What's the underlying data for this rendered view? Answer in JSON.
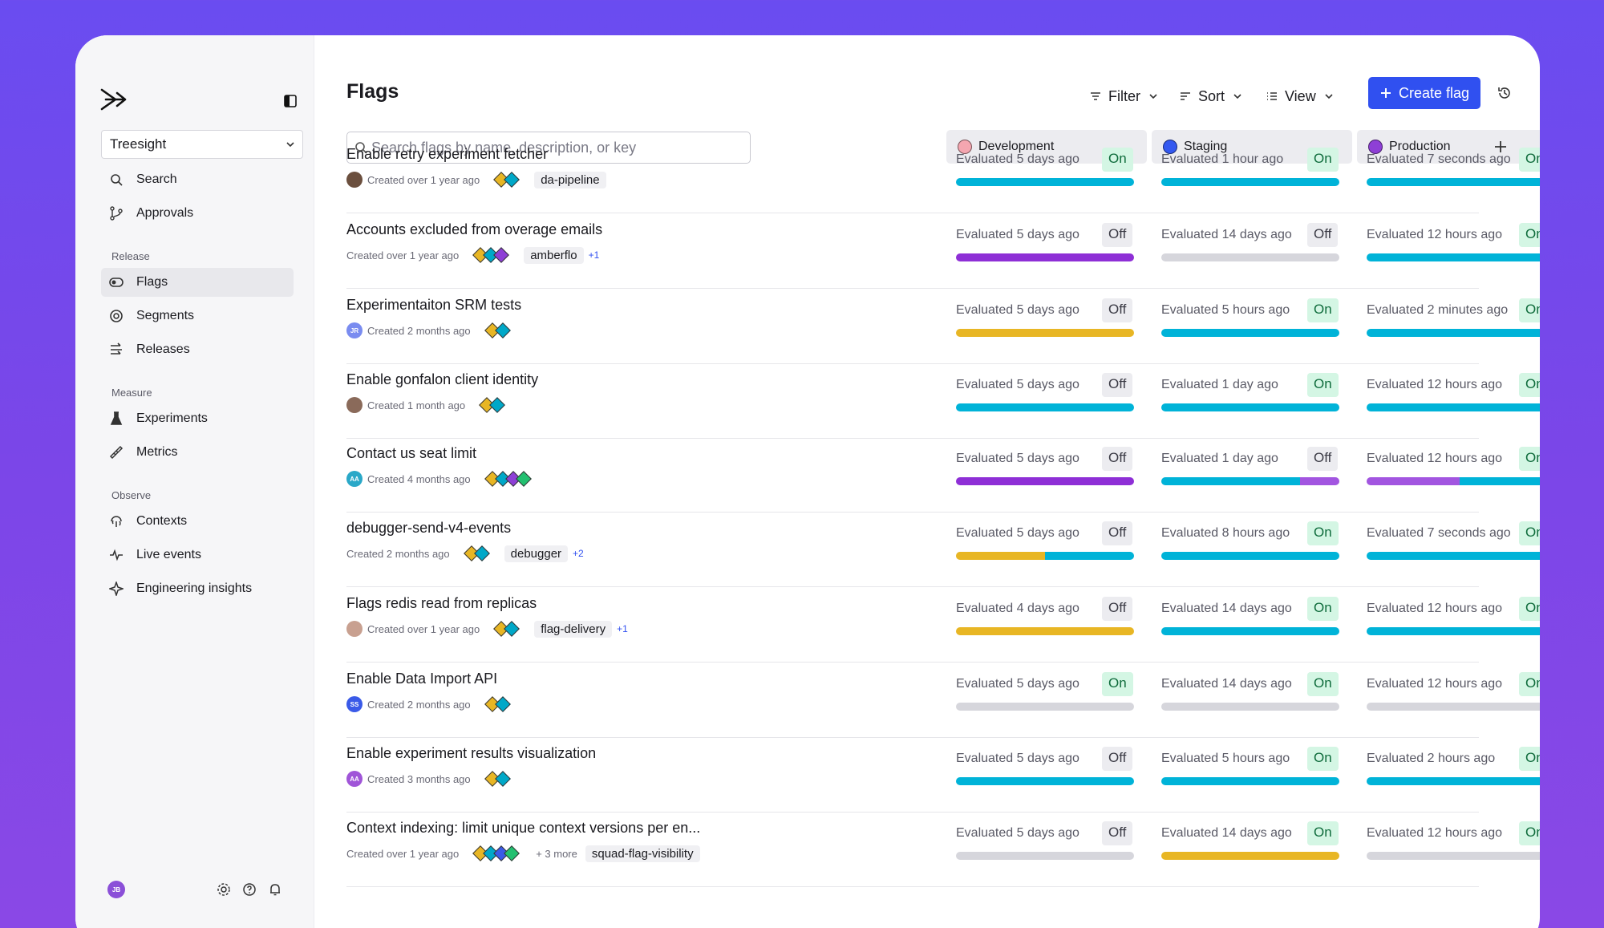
{
  "colors": {
    "blue": "#00b3d8",
    "purple": "#8e2fd6",
    "yellow": "#e8b624",
    "gray": "#d6d6dc",
    "lavender": "#a255e0"
  },
  "sidebar": {
    "project": "Treesight",
    "top_items": [
      {
        "label": "Search",
        "icon": "search-icon"
      },
      {
        "label": "Approvals",
        "icon": "branch-icon"
      }
    ],
    "sections": [
      {
        "label": "Release",
        "items": [
          {
            "label": "Flags",
            "icon": "toggle-icon",
            "active": true
          },
          {
            "label": "Segments",
            "icon": "segments-icon"
          },
          {
            "label": "Releases",
            "icon": "releases-icon"
          }
        ]
      },
      {
        "label": "Measure",
        "items": [
          {
            "label": "Experiments",
            "icon": "flask-icon"
          },
          {
            "label": "Metrics",
            "icon": "ruler-icon"
          }
        ]
      },
      {
        "label": "Observe",
        "items": [
          {
            "label": "Contexts",
            "icon": "fingerprint-icon"
          },
          {
            "label": "Live events",
            "icon": "pulse-icon"
          },
          {
            "label": "Engineering insights",
            "icon": "sparkle-icon"
          }
        ]
      }
    ],
    "user_initials": "JB"
  },
  "header": {
    "title": "Flags",
    "filter": "Filter",
    "sort": "Sort",
    "view": "View",
    "create": "Create flag"
  },
  "search": {
    "placeholder": "Search flags by name, description, or key"
  },
  "environments": [
    {
      "name": "Development",
      "color": "#f4a6b0"
    },
    {
      "name": "Staging",
      "color": "#3358f0"
    },
    {
      "name": "Production",
      "color": "#8e3fd6"
    }
  ],
  "flags": [
    {
      "name": "Enable retry experiment fetcher",
      "avatar": {
        "initials": "",
        "color": "#6b4f3e"
      },
      "created": "Created over 1 year ago",
      "diamonds": [
        "#e8b624",
        "#00a8c8"
      ],
      "tag": "da-pipeline",
      "extra": "",
      "more": "",
      "envs": [
        {
          "eval": "Evaluated 5 days ago",
          "state": "On",
          "bar": [
            [
              "blue",
              1
            ]
          ]
        },
        {
          "eval": "Evaluated 1 hour ago",
          "state": "On",
          "bar": [
            [
              "blue",
              1
            ]
          ]
        },
        {
          "eval": "Evaluated 7 seconds ago",
          "state": "On",
          "bar": [
            [
              "blue",
              1
            ]
          ]
        }
      ]
    },
    {
      "name": "Accounts excluded from overage emails",
      "avatar": null,
      "created": "Created over 1 year ago",
      "diamonds": [
        "#e8b624",
        "#00a8c8",
        "#8e3fd6"
      ],
      "tag": "amberflo",
      "extra": "+1",
      "more": "",
      "envs": [
        {
          "eval": "Evaluated 5 days ago",
          "state": "Off",
          "bar": [
            [
              "purple",
              1
            ]
          ]
        },
        {
          "eval": "Evaluated 14 days ago",
          "state": "Off",
          "bar": [
            [
              "gray",
              1
            ]
          ]
        },
        {
          "eval": "Evaluated 12 hours ago",
          "state": "On",
          "bar": [
            [
              "blue",
              1
            ]
          ]
        }
      ]
    },
    {
      "name": "Experimentaiton SRM tests",
      "avatar": {
        "initials": "JR",
        "color": "#7a8cf0"
      },
      "created": "Created 2 months ago",
      "diamonds": [
        "#e8b624",
        "#00a8c8"
      ],
      "tag": "",
      "extra": "",
      "more": "",
      "envs": [
        {
          "eval": "Evaluated 5 days ago",
          "state": "Off",
          "bar": [
            [
              "yellow",
              1
            ]
          ]
        },
        {
          "eval": "Evaluated 5 hours ago",
          "state": "On",
          "bar": [
            [
              "blue",
              1
            ]
          ]
        },
        {
          "eval": "Evaluated 2 minutes ago",
          "state": "On",
          "bar": [
            [
              "blue",
              1
            ]
          ]
        }
      ]
    },
    {
      "name": "Enable gonfalon client identity",
      "avatar": {
        "initials": "",
        "color": "#8a6a5a"
      },
      "created": "Created 1 month ago",
      "diamonds": [
        "#e8b624",
        "#00a8c8"
      ],
      "tag": "",
      "extra": "",
      "more": "",
      "envs": [
        {
          "eval": "Evaluated 5 days ago",
          "state": "Off",
          "bar": [
            [
              "blue",
              1
            ]
          ]
        },
        {
          "eval": "Evaluated 1 day ago",
          "state": "On",
          "bar": [
            [
              "blue",
              1
            ]
          ]
        },
        {
          "eval": "Evaluated 12 hours ago",
          "state": "On",
          "bar": [
            [
              "blue",
              1
            ]
          ]
        }
      ]
    },
    {
      "name": "Contact us seat limit",
      "avatar": {
        "initials": "AA",
        "color": "#2aa8c8"
      },
      "created": "Created 4 months ago",
      "diamonds": [
        "#e8b624",
        "#00a8c8",
        "#8e3fd6",
        "#22c070"
      ],
      "tag": "",
      "extra": "",
      "more": "",
      "envs": [
        {
          "eval": "Evaluated 5 days ago",
          "state": "Off",
          "bar": [
            [
              "purple",
              1
            ]
          ]
        },
        {
          "eval": "Evaluated 1 day ago",
          "state": "Off",
          "bar": [
            [
              "blue",
              0.78
            ],
            [
              "lavender",
              0.22
            ]
          ]
        },
        {
          "eval": "Evaluated 12 hours ago",
          "state": "On",
          "bar": [
            [
              "lavender",
              0.5
            ],
            [
              "blue",
              0.5
            ]
          ]
        }
      ]
    },
    {
      "name": "debugger-send-v4-events",
      "avatar": null,
      "created": "Created 2 months ago",
      "diamonds": [
        "#e8b624",
        "#00a8c8"
      ],
      "tag": "debugger",
      "extra": "+2",
      "more": "",
      "envs": [
        {
          "eval": "Evaluated 5 days ago",
          "state": "Off",
          "bar": [
            [
              "yellow",
              0.5
            ],
            [
              "blue",
              0.5
            ]
          ]
        },
        {
          "eval": "Evaluated 8 hours ago",
          "state": "On",
          "bar": [
            [
              "blue",
              1
            ]
          ]
        },
        {
          "eval": "Evaluated 7 seconds ago",
          "state": "On",
          "bar": [
            [
              "blue",
              1
            ]
          ]
        }
      ]
    },
    {
      "name": "Flags redis read from replicas",
      "avatar": {
        "initials": "",
        "color": "#c8a090"
      },
      "created": "Created over 1 year ago",
      "diamonds": [
        "#e8b624",
        "#00a8c8"
      ],
      "tag": "flag-delivery",
      "extra": "+1",
      "more": "",
      "envs": [
        {
          "eval": "Evaluated 4 days ago",
          "state": "Off",
          "bar": [
            [
              "yellow",
              1
            ]
          ]
        },
        {
          "eval": "Evaluated 14 days ago",
          "state": "On",
          "bar": [
            [
              "blue",
              1
            ]
          ]
        },
        {
          "eval": "Evaluated 12 hours ago",
          "state": "On",
          "bar": [
            [
              "blue",
              1
            ]
          ]
        }
      ]
    },
    {
      "name": "Enable Data Import API",
      "avatar": {
        "initials": "SS",
        "color": "#3a5ae8"
      },
      "created": "Created 2 months ago",
      "diamonds": [
        "#e8b624",
        "#00a8c8"
      ],
      "tag": "",
      "extra": "",
      "more": "",
      "envs": [
        {
          "eval": "Evaluated 5 days ago",
          "state": "On",
          "bar": [
            [
              "gray",
              1
            ]
          ]
        },
        {
          "eval": "Evaluated 14 days ago",
          "state": "On",
          "bar": [
            [
              "gray",
              1
            ]
          ]
        },
        {
          "eval": "Evaluated 12 hours ago",
          "state": "On",
          "bar": [
            [
              "gray",
              1
            ]
          ]
        }
      ]
    },
    {
      "name": "Enable experiment results visualization",
      "avatar": {
        "initials": "AA",
        "color": "#a055d8"
      },
      "created": "Created 3 months ago",
      "diamonds": [
        "#e8b624",
        "#00a8c8"
      ],
      "tag": "",
      "extra": "",
      "more": "",
      "envs": [
        {
          "eval": "Evaluated 5 days ago",
          "state": "Off",
          "bar": [
            [
              "blue",
              1
            ]
          ]
        },
        {
          "eval": "Evaluated 5 hours ago",
          "state": "On",
          "bar": [
            [
              "blue",
              1
            ]
          ]
        },
        {
          "eval": "Evaluated 2 hours ago",
          "state": "On",
          "bar": [
            [
              "blue",
              1
            ]
          ]
        }
      ]
    },
    {
      "name": "Context indexing: limit unique context versions per en...",
      "avatar": null,
      "created": "Created over 1 year ago",
      "diamonds": [
        "#e8b624",
        "#00a8c8",
        "#3a5ae8",
        "#22c070"
      ],
      "tag": "squad-flag-visibility",
      "extra": "",
      "more": "+ 3 more",
      "envs": [
        {
          "eval": "Evaluated 5 days ago",
          "state": "Off",
          "bar": [
            [
              "gray",
              1
            ]
          ]
        },
        {
          "eval": "Evaluated 14 days ago",
          "state": "On",
          "bar": [
            [
              "yellow",
              1
            ]
          ]
        },
        {
          "eval": "Evaluated 12 hours ago",
          "state": "On",
          "bar": [
            [
              "gray",
              1
            ]
          ]
        }
      ]
    }
  ]
}
